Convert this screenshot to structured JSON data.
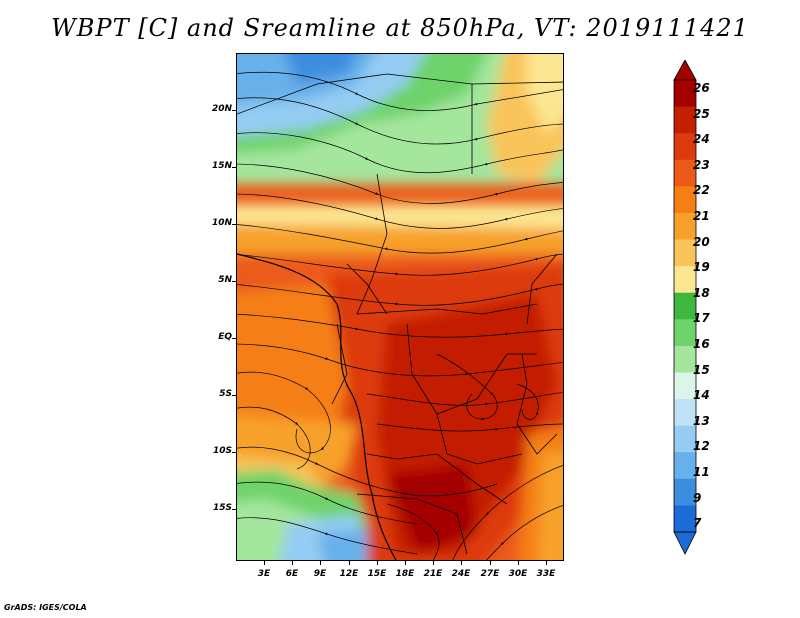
{
  "title": "WBPT [C] and Sreamline at 850hPa, VT: 2019111421",
  "footer": "GrADS: IGES/COLA",
  "map": {
    "lat_labels": [
      "20N",
      "15N",
      "10N",
      "5N",
      "EQ",
      "5S",
      "10S",
      "15S"
    ],
    "lon_labels": [
      "3E",
      "6E",
      "9E",
      "12E",
      "15E",
      "18E",
      "21E",
      "24E",
      "27E",
      "30E",
      "33E"
    ]
  },
  "colorbar": {
    "labels": [
      "26",
      "25",
      "24",
      "23",
      "22",
      "21",
      "20",
      "19",
      "18",
      "17",
      "16",
      "15",
      "14",
      "13",
      "12",
      "11",
      "9",
      "7"
    ],
    "colors": [
      "#a50000",
      "#c31f00",
      "#dd3a0f",
      "#ec5a1a",
      "#f57f13",
      "#f7a12b",
      "#f9c55a",
      "#fbe691",
      "#3fb83f",
      "#6ed36a",
      "#a3e69c",
      "#dcf5e9",
      "#bfe2f7",
      "#94ccf3",
      "#68b0ea",
      "#3e8ee0",
      "#1c6cd8",
      "#1c6cd8"
    ]
  }
}
